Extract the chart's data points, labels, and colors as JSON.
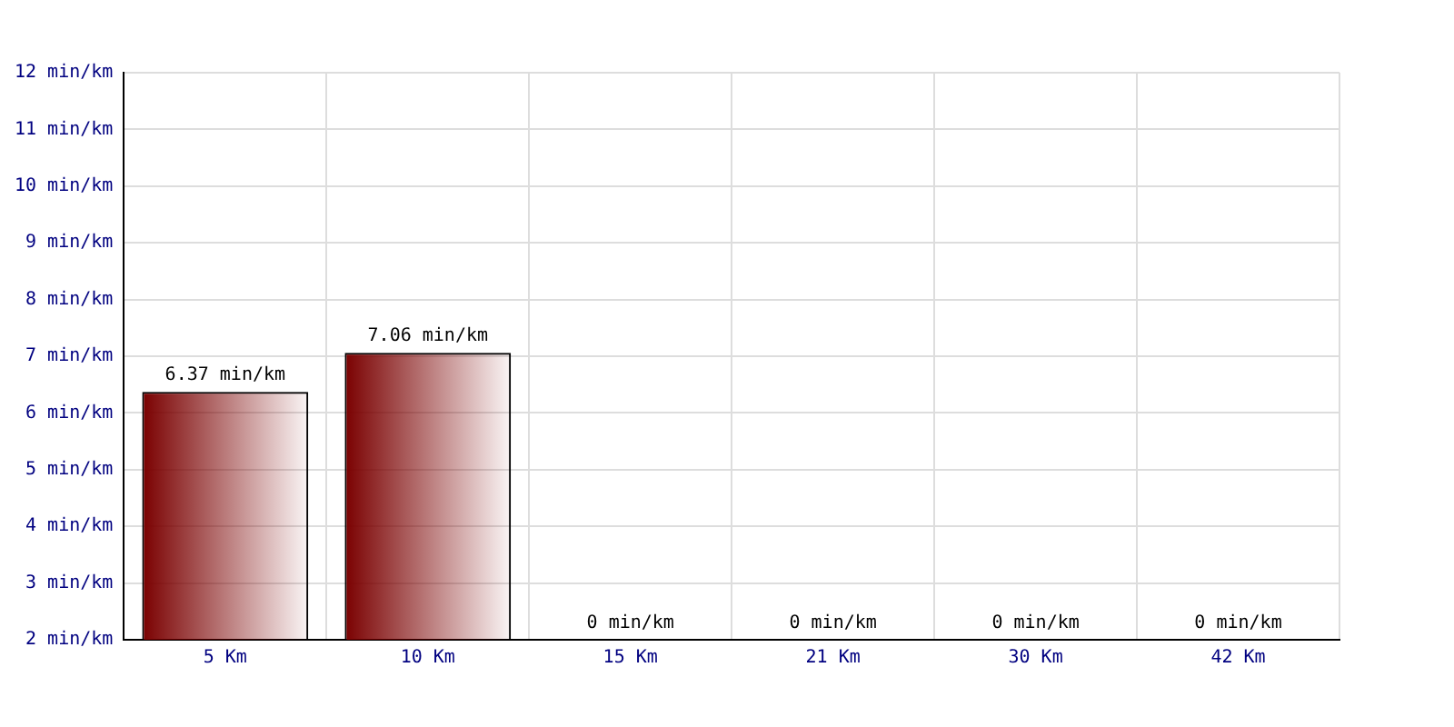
{
  "chart_data": {
    "type": "bar",
    "categories": [
      "5 Km",
      "10 Km",
      "15 Km",
      "21 Km",
      "30 Km",
      "42 Km"
    ],
    "values": [
      6.37,
      7.06,
      null,
      null,
      null,
      null
    ],
    "value_labels": [
      "6.37 min/km",
      "7.06 min/km",
      "0 min/km",
      "0 min/km",
      "0 min/km",
      "0 min/km"
    ],
    "color": "#7a0000",
    "ylim": [
      2,
      12
    ],
    "yticks": [
      {
        "value": 2,
        "label": "2 min/km"
      },
      {
        "value": 3,
        "label": "3 min/km"
      },
      {
        "value": 4,
        "label": "4 min/km"
      },
      {
        "value": 5,
        "label": "5 min/km"
      },
      {
        "value": 6,
        "label": "6 min/km"
      },
      {
        "value": 7,
        "label": "7 min/km"
      },
      {
        "value": 8,
        "label": "8 min/km"
      },
      {
        "value": 9,
        "label": "9 min/km"
      },
      {
        "value": 10,
        "label": "10 min/km"
      },
      {
        "value": 11,
        "label": "11 min/km"
      },
      {
        "value": 12,
        "label": "12 min/km"
      }
    ],
    "grid": true,
    "legend": false
  }
}
